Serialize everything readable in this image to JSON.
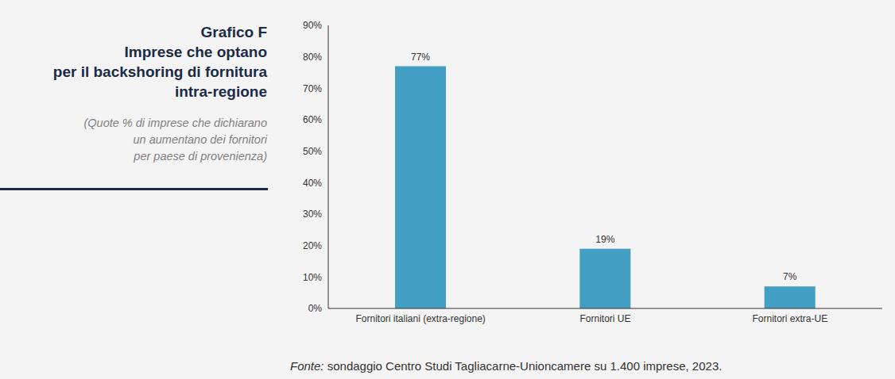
{
  "chart_data": {
    "type": "bar",
    "title": "Grafico F",
    "subtitle": [
      "Imprese che optano",
      "per il backshoring di fornitura",
      "intra-regione"
    ],
    "note": [
      "(Quote % di imprese che dichiarano",
      "un aumentano dei fornitori",
      "per paese di provenienza)"
    ],
    "source": "Fonte: sondaggio Centro Studi Tagliacarne-Unioncamere su 1.400 imprese, 2023.",
    "categories": [
      "Fornitori italiani (extra-regione)",
      "Fornitori UE",
      "Fornitori extra-UE"
    ],
    "values": [
      77,
      19,
      7
    ],
    "value_labels": [
      "77%",
      "19%",
      "7%"
    ],
    "color": "#429ec2",
    "ylim": [
      0,
      90
    ],
    "yticks": [
      {
        "value": 0,
        "label": "0%"
      },
      {
        "value": 10,
        "label": "10%"
      },
      {
        "value": 20,
        "label": "20%"
      },
      {
        "value": 30,
        "label": "30%"
      },
      {
        "value": 40,
        "label": "40%"
      },
      {
        "value": 50,
        "label": "50%"
      },
      {
        "value": 60,
        "label": "60%"
      },
      {
        "value": 70,
        "label": "70%"
      },
      {
        "value": 80,
        "label": "80%"
      },
      {
        "value": 90,
        "label": "90%"
      }
    ],
    "grid": false,
    "data_labels": true
  }
}
